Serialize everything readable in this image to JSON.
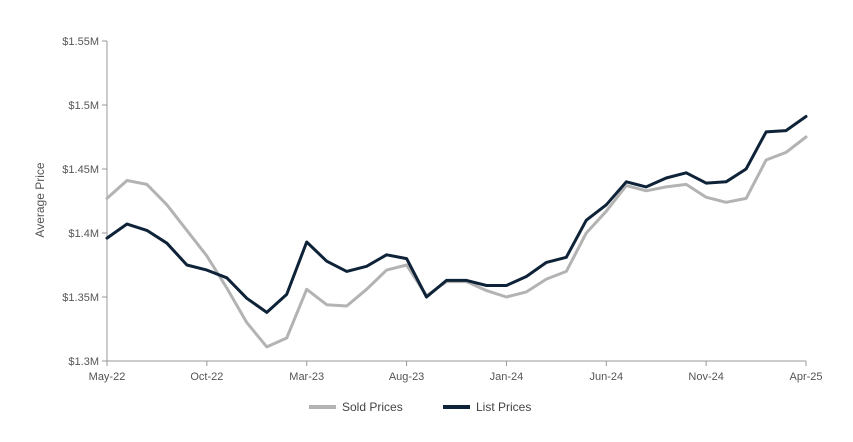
{
  "chart_data": {
    "type": "line",
    "ylabel": "Average Price",
    "xlabel": "",
    "ylim": [
      1300000,
      1550000
    ],
    "y_ticks": [
      1300000,
      1350000,
      1400000,
      1450000,
      1500000,
      1550000
    ],
    "y_tick_labels": [
      "$1.3M",
      "$1.35M",
      "$1.4M",
      "$1.45M",
      "$1.5M",
      "$1.55M"
    ],
    "x": [
      "May-22",
      "Jun-22",
      "Jul-22",
      "Aug-22",
      "Sep-22",
      "Oct-22",
      "Nov-22",
      "Dec-22",
      "Jan-23",
      "Feb-23",
      "Mar-23",
      "Apr-23",
      "May-23",
      "Jun-23",
      "Jul-23",
      "Aug-23",
      "Sep-23",
      "Oct-23",
      "Nov-23",
      "Dec-23",
      "Jan-24",
      "Feb-24",
      "Mar-24",
      "Apr-24",
      "May-24",
      "Jun-24",
      "Jul-24",
      "Aug-24",
      "Sep-24",
      "Oct-24",
      "Nov-24",
      "Dec-24",
      "Jan-25",
      "Feb-25",
      "Mar-25",
      "Apr-25"
    ],
    "x_tick_labels": [
      "May-22",
      "Oct-22",
      "Mar-23",
      "Aug-23",
      "Jan-24",
      "Jun-24",
      "Nov-24",
      "Apr-25"
    ],
    "legend_position": "bottom",
    "grid": false,
    "series": [
      {
        "name": "Sold Prices",
        "color": "#b3b3b3",
        "values": [
          1427000,
          1441000,
          1438000,
          1422000,
          1402000,
          1382000,
          1357000,
          1330000,
          1311000,
          1318000,
          1356000,
          1344000,
          1343000,
          1356000,
          1371000,
          1375000,
          1351000,
          1362000,
          1362000,
          1355000,
          1350000,
          1354000,
          1364000,
          1370000,
          1400000,
          1417000,
          1437000,
          1433000,
          1436000,
          1438000,
          1428000,
          1424000,
          1427000,
          1457000,
          1463000,
          1475000
        ]
      },
      {
        "name": "List Prices",
        "color": "#0e2238",
        "values": [
          1396000,
          1407000,
          1402000,
          1392000,
          1375000,
          1371000,
          1365000,
          1349000,
          1338000,
          1352000,
          1393000,
          1378000,
          1370000,
          1374000,
          1383000,
          1380000,
          1350000,
          1363000,
          1363000,
          1359000,
          1359000,
          1366000,
          1377000,
          1381000,
          1410000,
          1422000,
          1440000,
          1436000,
          1443000,
          1447000,
          1439000,
          1440000,
          1450000,
          1479000,
          1480000,
          1491000
        ]
      }
    ]
  }
}
